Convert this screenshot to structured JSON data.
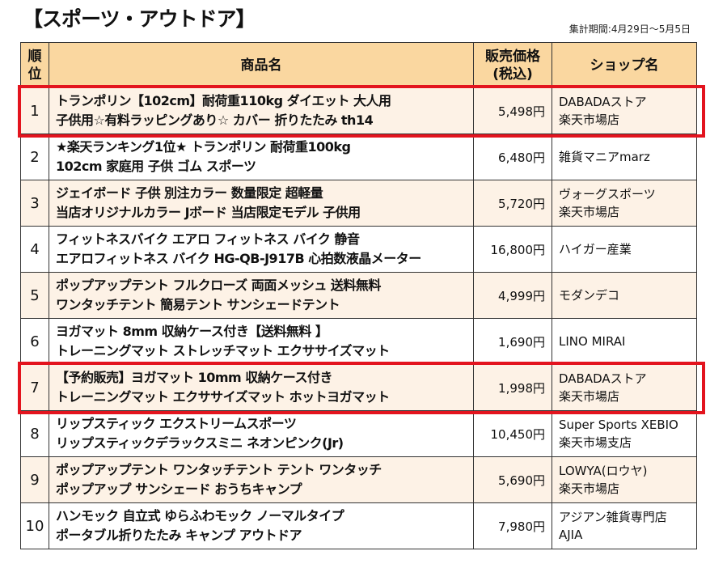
{
  "title": "【スポーツ・アウトドア】",
  "period": "集計期間:4月29日〜5月5日",
  "headers": {
    "rank": "順\n位",
    "name": "商品名",
    "price": "販売価格\n(税込)",
    "shop": "ショップ名"
  },
  "highlight_color": "#e3141e",
  "rows": [
    {
      "rank": "1",
      "name": "トランポリン【102cm】耐荷重110kg ダイエット 大人用\n子供用☆有料ラッピングあり☆ カバー 折りたたみ th14",
      "price": "5,498円",
      "shop": "DABADAストア\n楽天市場店",
      "highlighted": true
    },
    {
      "rank": "2",
      "name": "★楽天ランキング1位★ トランポリン 耐荷重100kg\n102cm 家庭用 子供 ゴム スポーツ",
      "price": "6,480円",
      "shop": "雑貨マニアmarz"
    },
    {
      "rank": "3",
      "name": "ジェイボード 子供 別注カラー 数量限定 超軽量\n当店オリジナルカラー Jボード 当店限定モデル 子供用",
      "price": "5,720円",
      "shop": "ヴォーグスポーツ\n楽天市場店"
    },
    {
      "rank": "4",
      "name": "フィットネスバイク エアロ フィットネス バイク 静音\nエアロフィットネス バイク HG-QB-J917B 心拍数液晶メーター",
      "price": "16,800円",
      "shop": "ハイガー産業"
    },
    {
      "rank": "5",
      "name": "ポップアップテント フルクローズ 両面メッシュ 送料無料\nワンタッチテント 簡易テント サンシェードテント",
      "price": "4,999円",
      "shop": "モダンデコ"
    },
    {
      "rank": "6",
      "name": "ヨガマット 8mm 収納ケース付き【送料無料 】\nトレーニングマット ストレッチマット エクササイズマット",
      "price": "1,690円",
      "shop": "LINO MIRAI"
    },
    {
      "rank": "7",
      "name": "【予約販売】ヨガマット 10mm 収納ケース付き\nトレーニングマット エクササイズマット ホットヨガマット",
      "price": "1,998円",
      "shop": "DABADAストア\n楽天市場店",
      "highlighted": true
    },
    {
      "rank": "8",
      "name": "リップスティック エクストリームスポーツ\nリップスティックデラックスミニ ネオンピンク(Jr)",
      "price": "10,450円",
      "shop": "Super Sports XEBIO\n楽天市場支店"
    },
    {
      "rank": "9",
      "name": "ポップアップテント ワンタッチテント テント ワンタッチ\nポップアップ サンシェード おうちキャンプ",
      "price": "5,690円",
      "shop": "LOWYA(ロウヤ)\n楽天市場店"
    },
    {
      "rank": "10",
      "name": "ハンモック 自立式 ゆらふわモック ノーマルタイプ\nポータブル折りたたみ キャンプ アウトドア",
      "price": "7,980円",
      "shop": "アジアン雑貨専門店\nAJIA"
    }
  ]
}
